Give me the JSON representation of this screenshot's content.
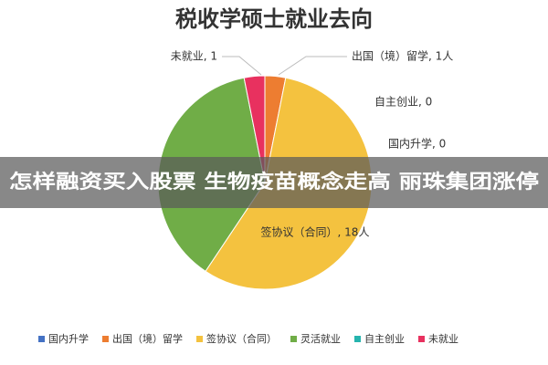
{
  "chart_data": {
    "type": "pie",
    "title": "税收学硕士就业去向",
    "categories": [
      "国内升学",
      "出国（境）留学",
      "签协议（合同）",
      "灵活就业",
      "自主创业",
      "未就业"
    ],
    "values": [
      0,
      1,
      18,
      12,
      0,
      1
    ],
    "value_labels": [
      "国内升学, 0",
      "出国（境）留学, 1人",
      "签协议（合同）, 18人",
      null,
      "自主创业, 0",
      "未就业, 1"
    ],
    "colors": [
      "#4472c4",
      "#ed7d31",
      "#f4c23f",
      "#70ad47",
      "#26b4ae",
      "#e8315f"
    ],
    "legend": "bottom"
  },
  "overlay": {
    "banner": "怎样融资买入股票 生物疫苗概念走高 丽珠集团涨停"
  }
}
